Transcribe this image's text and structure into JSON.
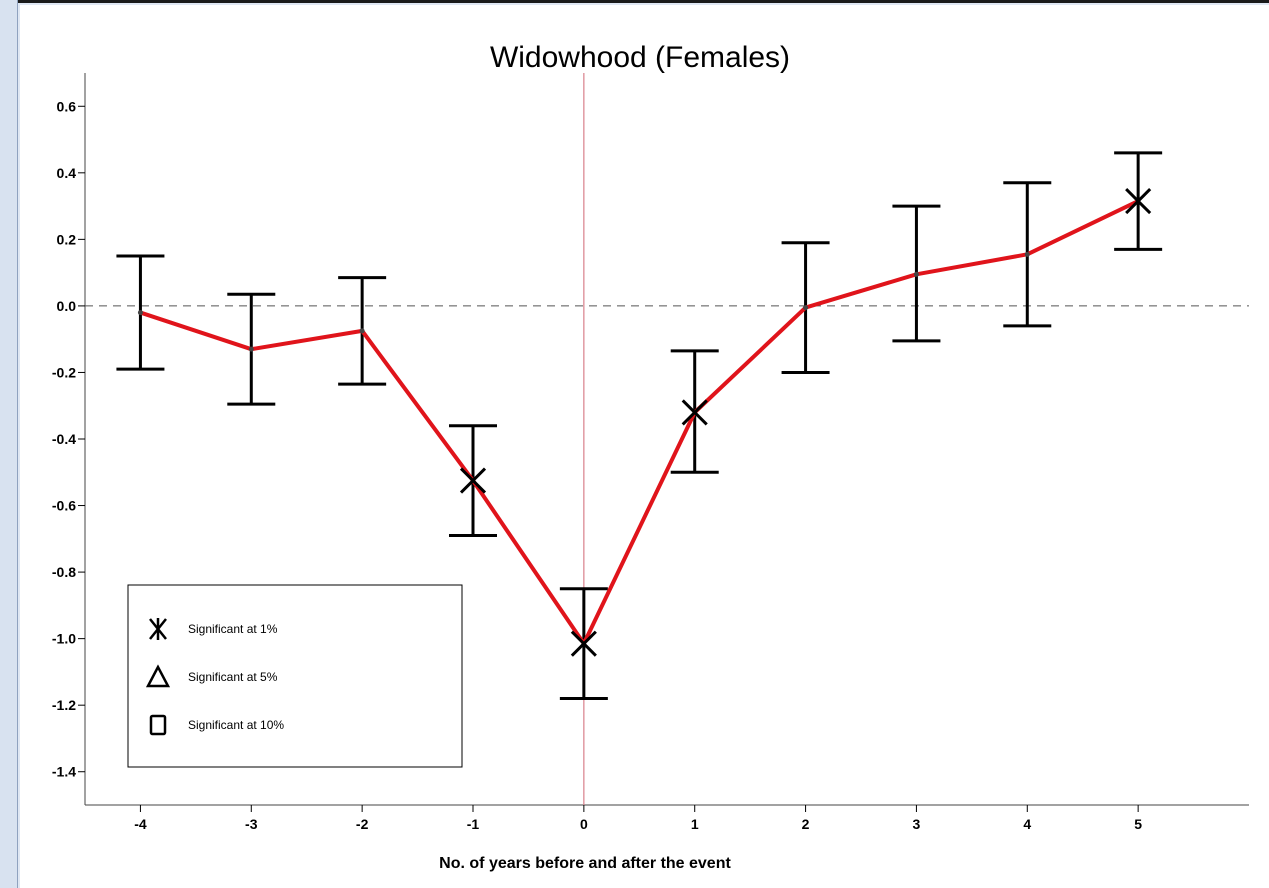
{
  "chart_data": {
    "type": "line",
    "title": "Widowhood (Females)",
    "xlabel": "No. of years before and after the event",
    "ylabel": "",
    "x": [
      -4,
      -3,
      -2,
      -1,
      0,
      1,
      2,
      3,
      4,
      5
    ],
    "xlim": [
      -4.5,
      6
    ],
    "ylim": [
      -1.5,
      0.7
    ],
    "x_ticks": [
      -4,
      -3,
      -2,
      -1,
      0,
      1,
      2,
      3,
      4,
      5
    ],
    "y_ticks": [
      0.6,
      0.4,
      0.2,
      0.0,
      -0.2,
      -0.4,
      -0.6,
      -0.8,
      -1.0,
      -1.2,
      -1.4
    ],
    "y_tick_labels": [
      "0.6",
      "0.4",
      "0.2",
      "0.0",
      "-0.2",
      "-0.4",
      "-0.6",
      "-0.8",
      "-1.0",
      "-1.2",
      "-1.4"
    ],
    "x_tick_labels": [
      "-4",
      "-3",
      "-2",
      "-1",
      "0",
      "1",
      "2",
      "3",
      "4",
      "5"
    ],
    "series": [
      {
        "values": [
          -0.02,
          -0.13,
          -0.075,
          -0.525,
          -1.015,
          -0.32,
          -0.005,
          0.095,
          0.155,
          0.315
        ],
        "lower": [
          -0.19,
          -0.295,
          -0.235,
          -0.69,
          -1.18,
          -0.5,
          -0.2,
          -0.105,
          -0.06,
          0.17
        ],
        "upper": [
          0.15,
          0.035,
          0.085,
          -0.36,
          -0.85,
          -0.135,
          0.19,
          0.3,
          0.37,
          0.46
        ],
        "significance": [
          "none",
          "none",
          "none",
          "1%",
          "1%",
          "1%",
          "none",
          "none",
          "none",
          "1%"
        ],
        "color": "#e0141b",
        "errorbar_color": "#000000"
      }
    ],
    "reference_lines": {
      "horizontal_y": 0.0,
      "horizontal_style": "dashed",
      "vertical_x": 0,
      "vertical_color": "#d9808a"
    },
    "grid": false,
    "legend": {
      "placement": "bottom-left",
      "entries": [
        {
          "symbol": "asterisk",
          "label": "Significant at 1%"
        },
        {
          "symbol": "triangle",
          "label": "Significant at 5%"
        },
        {
          "symbol": "square",
          "label": "Significant at 10%"
        }
      ]
    }
  }
}
